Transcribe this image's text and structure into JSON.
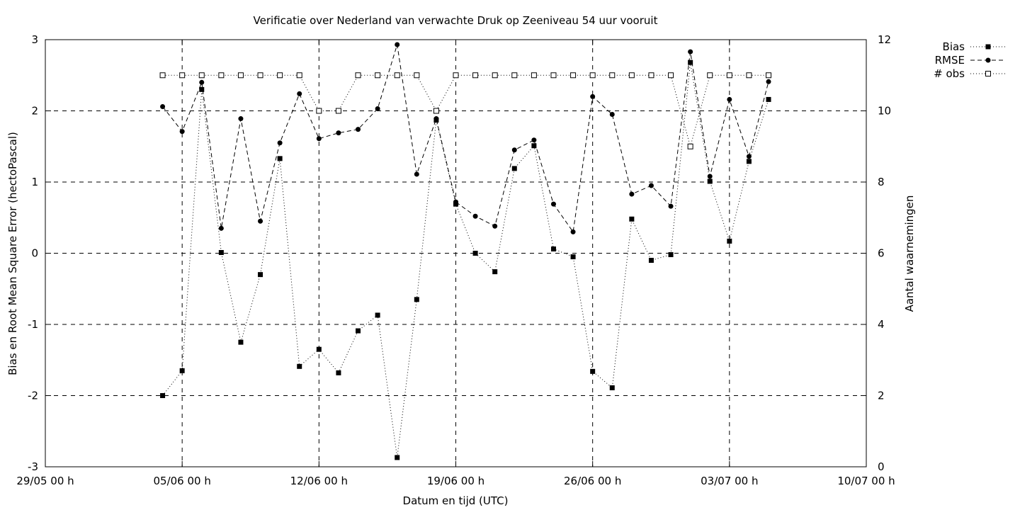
{
  "chart_data": {
    "type": "line",
    "title": "Verificatie over Nederland van verwachte Druk op Zeeniveau 54 uur vooruit",
    "xlabel": "Datum en tijd (UTC)",
    "ylabel": "Bias en Root Mean Square Error (hectoPascal)",
    "y2label": "Aantal waarnemingen",
    "xlim": [
      "29/05 00 h",
      "10/07 00 h"
    ],
    "xticks": [
      "29/05 00 h",
      "05/06 00 h",
      "12/06 00 h",
      "19/06 00 h",
      "26/06 00 h",
      "03/07 00 h",
      "10/07 00 h"
    ],
    "ylim": [
      -3,
      3
    ],
    "yticks": [
      "-3",
      "-2",
      "-1",
      "0",
      "1",
      "2",
      "3"
    ],
    "y2lim": [
      0,
      12
    ],
    "y2ticks": [
      "0",
      "2",
      "4",
      "6",
      "8",
      "10",
      "12"
    ],
    "grid": true,
    "legend_position": "top-right, outside",
    "x": [
      "04/06",
      "05/06",
      "06/06",
      "07/06",
      "08/06",
      "09/06",
      "10/06",
      "11/06",
      "12/06",
      "13/06",
      "14/06",
      "15/06",
      "16/06",
      "17/06",
      "18/06",
      "19/06",
      "20/06",
      "21/06",
      "22/06",
      "23/06",
      "24/06",
      "25/06",
      "26/06",
      "27/06",
      "28/06",
      "29/06",
      "30/06",
      "01/07",
      "02/07",
      "03/07",
      "04/07",
      "05/07"
    ],
    "series": [
      {
        "name": "Bias",
        "axis": "y1",
        "values": [
          -2.0,
          -1.65,
          2.3,
          0.01,
          -1.25,
          -0.3,
          1.33,
          -1.59,
          -1.35,
          -1.68,
          -1.09,
          -0.87,
          -2.87,
          -0.65,
          1.87,
          0.69,
          0.0,
          -0.26,
          1.19,
          1.51,
          0.06,
          -0.05,
          -1.66,
          -1.89,
          0.48,
          -0.1,
          -0.02,
          2.68,
          1.01,
          0.17,
          1.29,
          2.16
        ]
      },
      {
        "name": "RMSE",
        "axis": "y1",
        "values": [
          2.06,
          1.71,
          2.4,
          0.35,
          1.89,
          0.45,
          1.55,
          2.24,
          1.61,
          1.69,
          1.74,
          2.03,
          2.93,
          1.11,
          1.89,
          0.72,
          0.52,
          0.38,
          1.45,
          1.59,
          0.69,
          0.3,
          2.2,
          1.95,
          0.83,
          0.95,
          0.66,
          2.83,
          1.08,
          2.16,
          1.36,
          2.41
        ]
      },
      {
        "name": "# obs",
        "axis": "y2",
        "values": [
          11,
          11,
          11,
          11,
          11,
          11,
          11,
          11,
          10,
          10,
          11,
          11,
          11,
          11,
          10,
          11,
          11,
          11,
          11,
          11,
          11,
          11,
          11,
          11,
          11,
          11,
          11,
          9,
          11,
          11,
          11,
          11
        ]
      }
    ]
  }
}
